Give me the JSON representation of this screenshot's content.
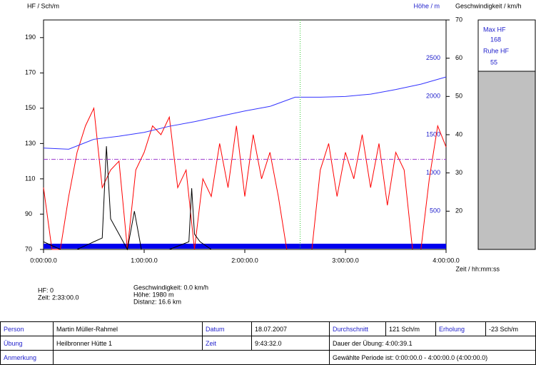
{
  "chart_data": {
    "type": "line",
    "y_label": "HF / Sch/m",
    "y2_label": "Höhe / m",
    "y3_label": "Geschwindigkeit / km/h",
    "x_label": "Zeit / hh:mm:ss",
    "xlim": [
      0,
      14400
    ],
    "xticks": [
      {
        "value": 0,
        "label": "0:00:00.0"
      },
      {
        "value": 3600,
        "label": "1:00:00.0"
      },
      {
        "value": 7200,
        "label": "2:00:00.0"
      },
      {
        "value": 10800,
        "label": "3:00:00.0"
      },
      {
        "value": 14400,
        "label": "4:00:00.0"
      }
    ],
    "ylim": [
      70,
      200
    ],
    "yticks": [
      70,
      90,
      110,
      130,
      150,
      170,
      190
    ],
    "y2lim": [
      0,
      3000
    ],
    "y2ticks": [
      500,
      1000,
      1500,
      2000,
      2500
    ],
    "y3lim": [
      10,
      70
    ],
    "y3ticks": [
      20,
      30,
      40,
      50,
      60,
      70
    ],
    "avg_line": 121,
    "avg_color": "#9933cc",
    "cursor_x": 9180,
    "cursor_color": "#33cc33",
    "series": [
      {
        "name": "HF",
        "color": "#ff0000",
        "axis": "y",
        "x": [
          0,
          300,
          600,
          900,
          1200,
          1500,
          1800,
          2100,
          2400,
          2700,
          3000,
          3300,
          3600,
          3900,
          4200,
          4500,
          4800,
          5100,
          5400,
          5700,
          6000,
          6300,
          6600,
          6900,
          7200,
          7500,
          7800,
          8100,
          8400,
          8700,
          9000,
          9300,
          9600,
          9900,
          10200,
          10500,
          10800,
          11100,
          11400,
          11700,
          12000,
          12300,
          12600,
          12900,
          13200,
          13500,
          13800,
          14100,
          14400
        ],
        "values": [
          105,
          70,
          70,
          100,
          125,
          140,
          150,
          105,
          115,
          120,
          70,
          115,
          125,
          140,
          135,
          145,
          105,
          115,
          70,
          110,
          100,
          130,
          105,
          140,
          100,
          135,
          110,
          125,
          100,
          70,
          70,
          70,
          70,
          115,
          130,
          100,
          125,
          110,
          135,
          105,
          130,
          95,
          125,
          115,
          70,
          70,
          110,
          140,
          128
        ]
      },
      {
        "name": "Höhe",
        "color": "#3333ff",
        "axis": "y2",
        "x": [
          0,
          900,
          1800,
          2700,
          3600,
          4500,
          5400,
          6300,
          7200,
          8100,
          9000,
          9900,
          10800,
          11700,
          12600,
          13500,
          14400
        ],
        "values": [
          1325,
          1310,
          1440,
          1480,
          1530,
          1610,
          1670,
          1740,
          1810,
          1870,
          1990,
          1990,
          2000,
          2030,
          2090,
          2160,
          2255
        ]
      },
      {
        "name": "Geschwindigkeit",
        "color": "#000000",
        "axis": "y3",
        "x": [
          0,
          300,
          600,
          900,
          1200,
          1800,
          2100,
          2250,
          2400,
          2700,
          3000,
          3250,
          3500,
          4500,
          5200,
          5300,
          5400,
          5600,
          6000,
          14400
        ],
        "values": [
          12,
          11,
          10,
          10,
          10,
          12,
          13,
          37,
          18,
          14,
          10,
          20,
          10,
          10,
          12,
          26,
          14,
          12,
          10,
          10
        ]
      }
    ]
  },
  "panel": {
    "max_label": "Max HF",
    "max_value": "168",
    "rest_label": "Ruhe HF",
    "rest_value": "55"
  },
  "info": {
    "hf": "HF: 0",
    "time": "Zeit: 2:33:00.0",
    "speed": "Geschwindigkeit: 0.0 km/h",
    "height": "Höhe: 1980 m",
    "distance": "Distanz: 16.6 km"
  },
  "table": {
    "rows": [
      [
        "Person",
        "Martin Müller-Rahmel",
        "Datum",
        "18.07.2007",
        "Durchschnitt",
        "121 Sch/m",
        "Erholung",
        "-23 Sch/m"
      ],
      [
        "Übung",
        "Heilbronner Hütte 1",
        "Zeit",
        "9:43:32.0",
        "Dauer der Übung: 4:00:39.1"
      ],
      [
        "Anmerkung",
        "",
        "Gewählte Periode ist: 0:00:00.0 - 4:00:00.0 (4:00:00.0)"
      ]
    ]
  }
}
